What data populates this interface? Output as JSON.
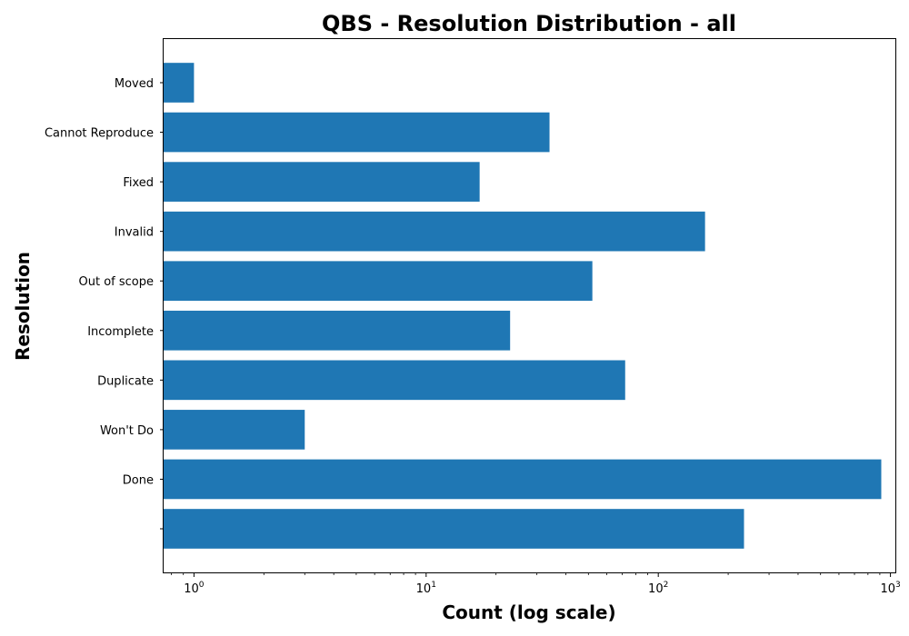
{
  "chart_data": {
    "type": "bar",
    "orientation": "horizontal",
    "title": "QBS - Resolution Distribution - all",
    "xlabel": "Count (log scale)",
    "ylabel": "Resolution",
    "x_scale": "log",
    "xlim": [
      0.74,
      1050
    ],
    "x_ticks": [
      1,
      10,
      100,
      1000
    ],
    "x_tick_labels": [
      {
        "base": "10",
        "exp": "0"
      },
      {
        "base": "10",
        "exp": "1"
      },
      {
        "base": "10",
        "exp": "2"
      },
      {
        "base": "10",
        "exp": "3"
      }
    ],
    "grid": false,
    "categories": [
      "Moved",
      "Cannot Reproduce",
      "Fixed",
      "Invalid",
      "Out of scope",
      "Incomplete",
      "Duplicate",
      "Won't Do",
      "Done",
      ""
    ],
    "values": [
      1,
      34,
      17,
      159,
      52,
      23,
      72,
      3,
      913,
      234
    ],
    "bar_color": "#1f77b4"
  }
}
